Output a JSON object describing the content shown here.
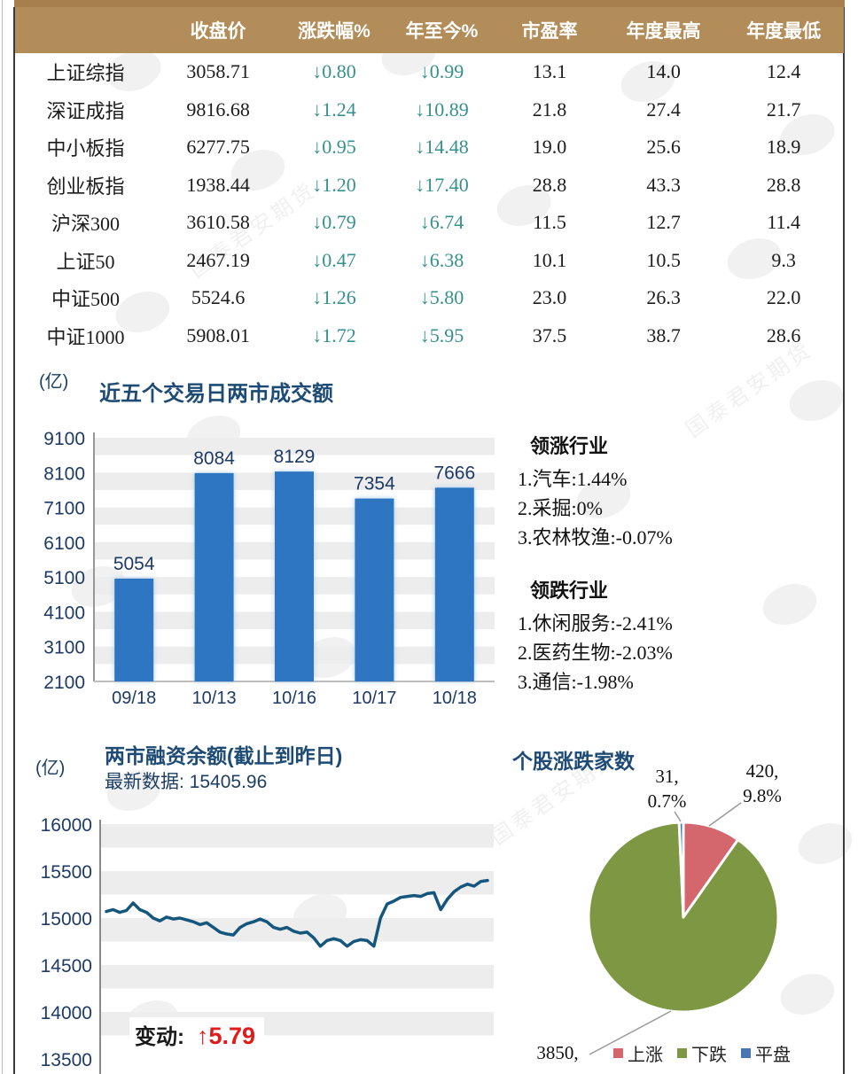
{
  "page": {
    "accent_tan": "#b28c59",
    "teal": "#35918d",
    "navy": "#1d4b75",
    "watermark_text": "国泰君安期货"
  },
  "table": {
    "headers": [
      "",
      "收盘价",
      "涨跌幅%",
      "年至今%",
      "市盈率",
      "年度最高",
      "年度最低"
    ],
    "rows": [
      [
        "上证综指",
        "3058.71",
        "↓0.80",
        "↓0.99",
        "13.1",
        "14.0",
        "12.4"
      ],
      [
        "深证成指",
        "9816.68",
        "↓1.24",
        "↓10.89",
        "21.8",
        "27.4",
        "21.7"
      ],
      [
        "中小板指",
        "6277.75",
        "↓0.95",
        "↓14.48",
        "19.0",
        "25.6",
        "18.9"
      ],
      [
        "创业板指",
        "1938.44",
        "↓1.20",
        "↓17.40",
        "28.8",
        "43.3",
        "28.8"
      ],
      [
        "沪深300",
        "3610.58",
        "↓0.79",
        "↓6.74",
        "11.5",
        "12.7",
        "11.4"
      ],
      [
        "上证50",
        "2467.19",
        "↓0.47",
        "↓6.38",
        "10.1",
        "10.5",
        "9.3"
      ],
      [
        "中证500",
        "5524.6",
        "↓1.26",
        "↓5.80",
        "23.0",
        "26.3",
        "22.0"
      ],
      [
        "中证1000",
        "5908.01",
        "↓1.72",
        "↓5.95",
        "37.5",
        "38.7",
        "28.6"
      ]
    ]
  },
  "volume_section": {
    "unit": "(亿)",
    "title": "近五个交易日两市成交额"
  },
  "industries": {
    "up_title": "领涨行业",
    "up_items": [
      "1.汽车:1.44%",
      "2.采掘:0%",
      "3.农林牧渔:-0.07%"
    ],
    "down_title": "领跌行业",
    "down_items": [
      "1.休闲服务:-2.41%",
      "2.医药生物:-2.03%",
      "3.通信:-1.98%"
    ]
  },
  "margin_section": {
    "unit": "(亿)",
    "title": "两市融资余额(截止到昨日)",
    "latest": "最新数据: 15405.96",
    "change_label": "变动:",
    "change_value": "↑5.79"
  },
  "pie_section": {
    "title": "个股涨跌家数",
    "label_flat_count": "31,",
    "label_flat_pct": "0.7%",
    "label_up_count": "420,",
    "label_up_pct": "9.8%",
    "label_down_count": "3850,"
  },
  "chart_data": [
    {
      "type": "bar",
      "title": "近五个交易日两市成交额",
      "unit": "亿",
      "categories": [
        "09/18",
        "10/13",
        "10/16",
        "10/17",
        "10/18"
      ],
      "values": [
        5054,
        8084,
        8129,
        7354,
        7666
      ],
      "ylim": [
        2100,
        9100
      ],
      "ytick_step": 1000,
      "bar_color": "#2e76c2",
      "label_color": "#1e3a66",
      "stripe_color": "#ededed",
      "legend_position": "none",
      "grid": "banded"
    },
    {
      "type": "line",
      "title": "两市融资余额(截止到昨日)",
      "unit": "亿",
      "latest_value": 15405.96,
      "change": 5.79,
      "ylim": [
        13500,
        16000
      ],
      "ytick_step": 500,
      "line_color": "#15567d",
      "stripe_color": "#ededed",
      "grid": "banded",
      "values": [
        15070,
        15090,
        15060,
        15080,
        15160,
        15090,
        15060,
        15000,
        14970,
        15010,
        14990,
        15000,
        14980,
        14960,
        14930,
        14950,
        14900,
        14850,
        14830,
        14820,
        14900,
        14940,
        14960,
        14990,
        14960,
        14900,
        14880,
        14900,
        14860,
        14840,
        14850,
        14790,
        14700,
        14760,
        14780,
        14760,
        14700,
        14750,
        14770,
        14760,
        14700,
        15000,
        15150,
        15180,
        15220,
        15230,
        15240,
        15230,
        15260,
        15270,
        15090,
        15200,
        15280,
        15330,
        15360,
        15340,
        15390,
        15400
      ]
    },
    {
      "type": "pie",
      "title": "个股涨跌家数",
      "slices": [
        {
          "label": "上涨",
          "value": 420,
          "pct": "9.8%",
          "color": "#d4666d"
        },
        {
          "label": "下跌",
          "value": 3850,
          "pct": "89.5%",
          "color": "#7d9743"
        },
        {
          "label": "平盘",
          "value": 31,
          "pct": "0.7%",
          "color": "#4876b4"
        }
      ],
      "legend_position": "bottom"
    }
  ]
}
